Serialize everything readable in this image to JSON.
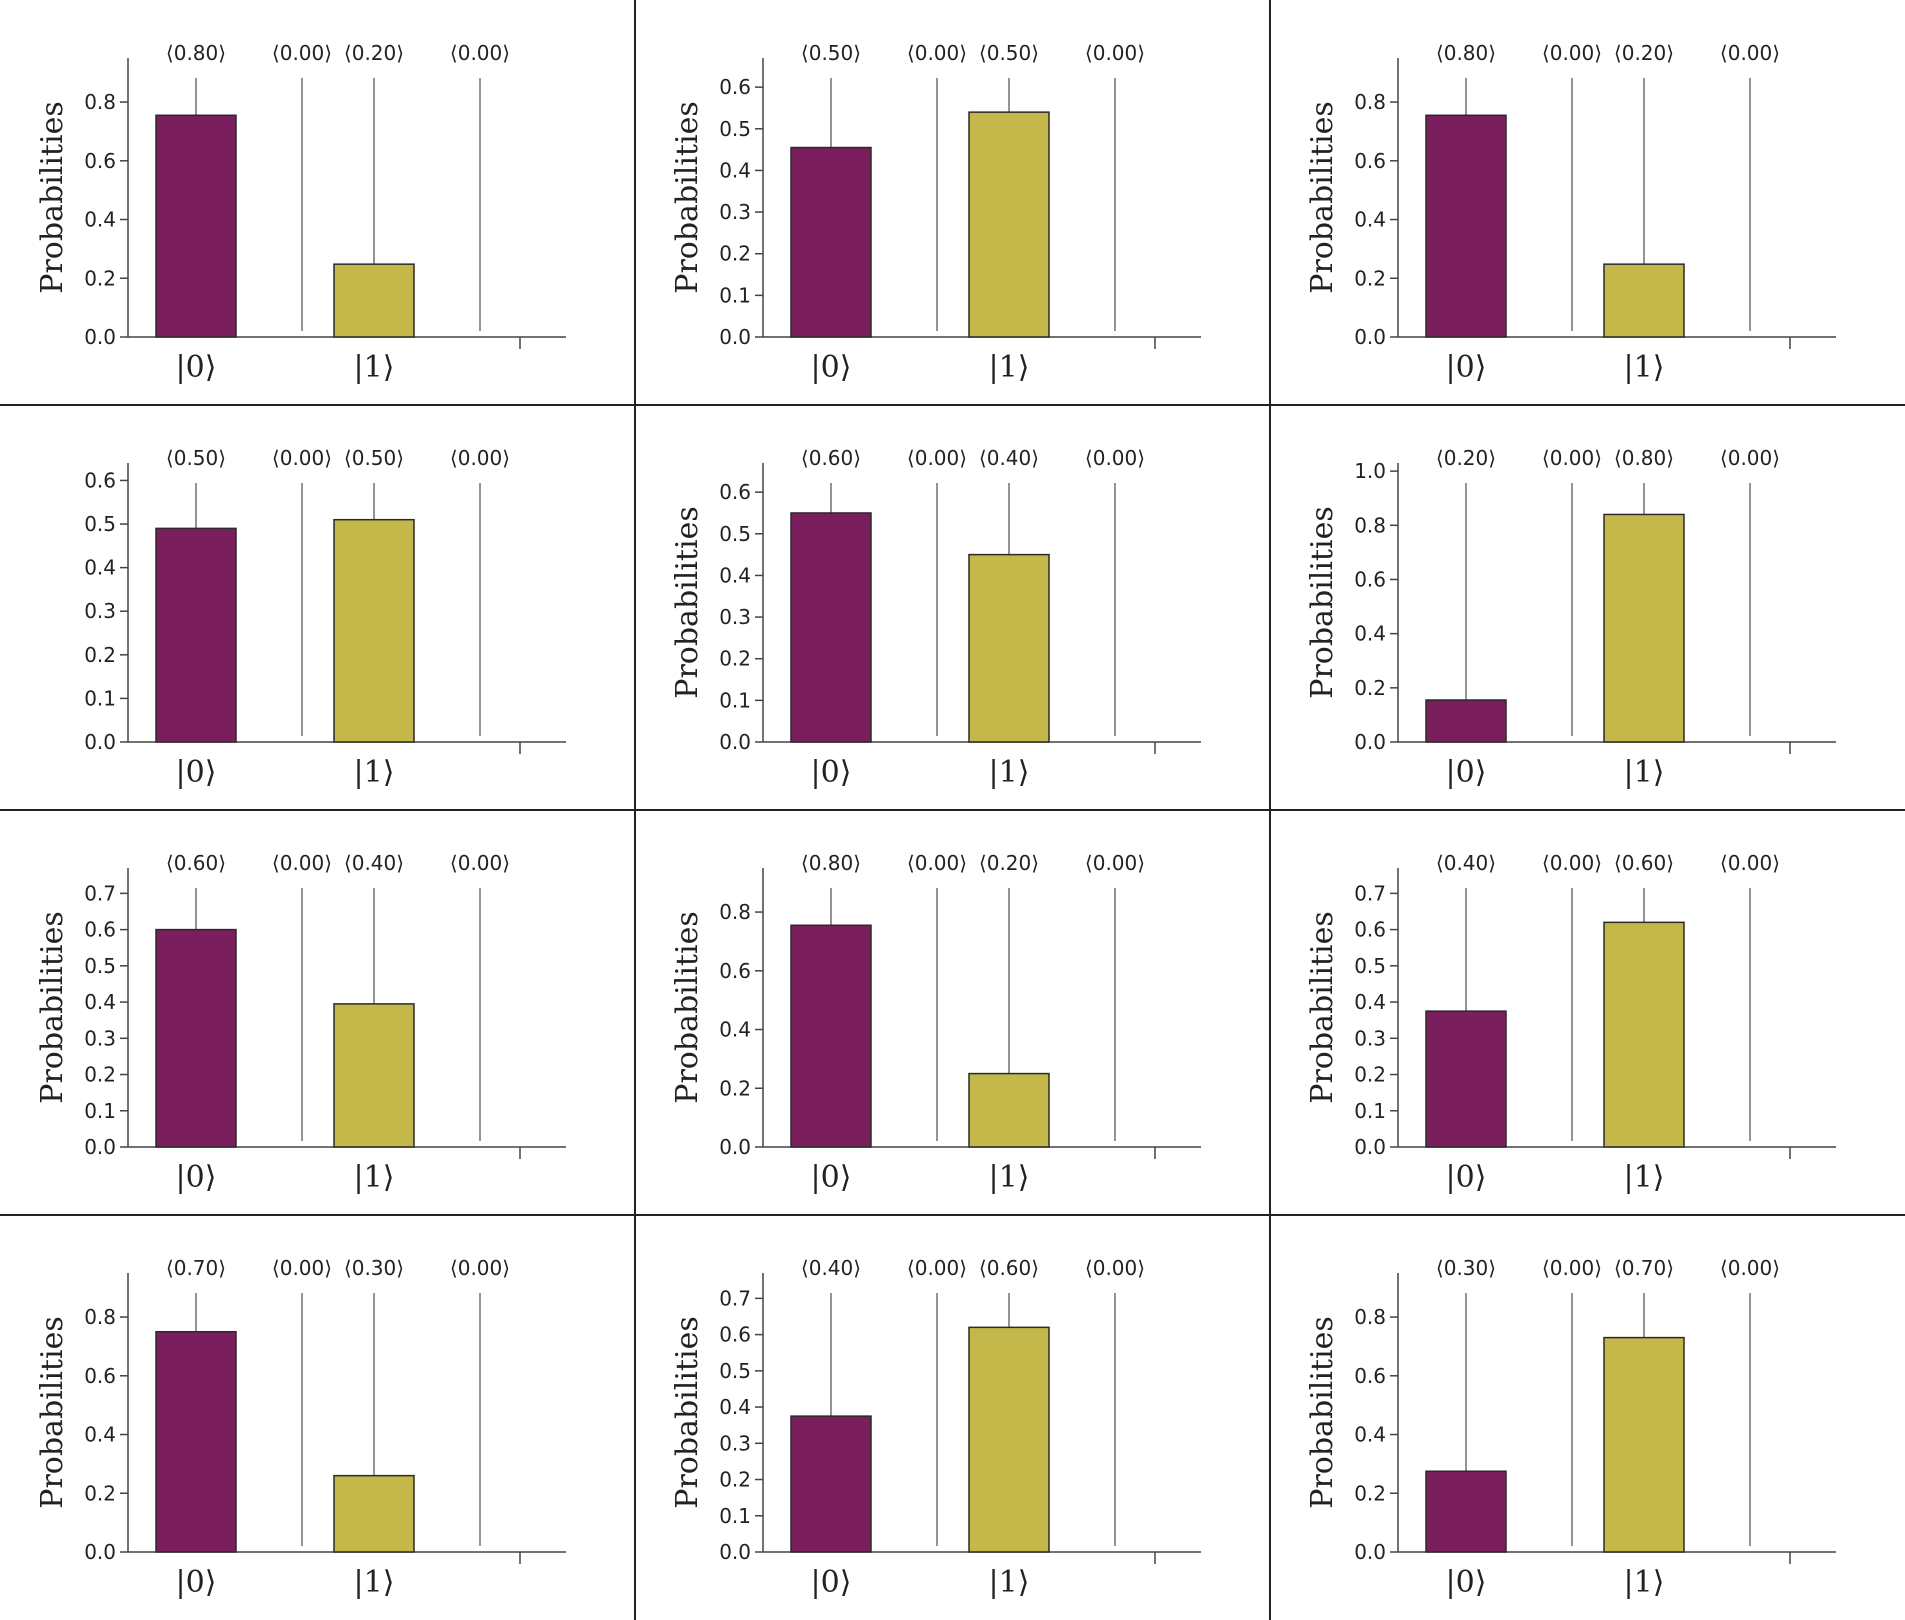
{
  "figure": {
    "rows": 4,
    "cols": 3,
    "colors": {
      "bar0": "#7a1e5e",
      "bar1": "#c4b84a",
      "bar_edge": "#2a2a2a",
      "stem": "#666666",
      "axis": "#444444",
      "divider": "#222222"
    }
  },
  "chart_data": [
    {
      "type": "bar",
      "ylabel": "Probabilities",
      "categories": [
        "|0⟩",
        "|1⟩"
      ],
      "values": [
        0.755,
        0.248
      ],
      "amplitudes": [
        "⟨0.80⟩",
        "⟨0.00⟩",
        "⟨0.20⟩",
        "⟨0.00⟩"
      ],
      "ylim": [
        0,
        0.95
      ],
      "yticks": [
        0.0,
        0.2,
        0.4,
        0.6,
        0.8
      ],
      "ytick_labels": [
        "0.0",
        "0.2",
        "0.4",
        "0.6",
        "0.8"
      ],
      "show_ylabel": true
    },
    {
      "type": "bar",
      "ylabel": "Probabilities",
      "categories": [
        "|0⟩",
        "|1⟩"
      ],
      "values": [
        0.455,
        0.54
      ],
      "amplitudes": [
        "⟨0.50⟩",
        "⟨0.00⟩",
        "⟨0.50⟩",
        "⟨0.00⟩"
      ],
      "ylim": [
        0,
        0.67
      ],
      "yticks": [
        0.0,
        0.1,
        0.2,
        0.3,
        0.4,
        0.5,
        0.6
      ],
      "ytick_labels": [
        "0.0",
        "0.1",
        "0.2",
        "0.3",
        "0.4",
        "0.5",
        "0.6"
      ],
      "show_ylabel": true
    },
    {
      "type": "bar",
      "ylabel": "Probabilities",
      "categories": [
        "|0⟩",
        "|1⟩"
      ],
      "values": [
        0.755,
        0.248
      ],
      "amplitudes": [
        "⟨0.80⟩",
        "⟨0.00⟩",
        "⟨0.20⟩",
        "⟨0.00⟩"
      ],
      "ylim": [
        0,
        0.95
      ],
      "yticks": [
        0.0,
        0.2,
        0.4,
        0.6,
        0.8
      ],
      "ytick_labels": [
        "0.0",
        "0.2",
        "0.4",
        "0.6",
        "0.8"
      ],
      "show_ylabel": true
    },
    {
      "type": "bar",
      "ylabel": "",
      "categories": [
        "|0⟩",
        "|1⟩"
      ],
      "values": [
        0.49,
        0.51
      ],
      "amplitudes": [
        "⟨0.50⟩",
        "⟨0.00⟩",
        "⟨0.50⟩",
        "⟨0.00⟩"
      ],
      "ylim": [
        0,
        0.64
      ],
      "yticks": [
        0.0,
        0.1,
        0.2,
        0.3,
        0.4,
        0.5,
        0.6
      ],
      "ytick_labels": [
        "0.0",
        "0.1",
        "0.2",
        "0.3",
        "0.4",
        "0.5",
        "0.6"
      ],
      "show_ylabel": false
    },
    {
      "type": "bar",
      "ylabel": "Probabilities",
      "categories": [
        "|0⟩",
        "|1⟩"
      ],
      "values": [
        0.55,
        0.45
      ],
      "amplitudes": [
        "⟨0.60⟩",
        "⟨0.00⟩",
        "⟨0.40⟩",
        "⟨0.00⟩"
      ],
      "ylim": [
        0,
        0.67
      ],
      "yticks": [
        0.0,
        0.1,
        0.2,
        0.3,
        0.4,
        0.5,
        0.6
      ],
      "ytick_labels": [
        "0.0",
        "0.1",
        "0.2",
        "0.3",
        "0.4",
        "0.5",
        "0.6"
      ],
      "show_ylabel": true
    },
    {
      "type": "bar",
      "ylabel": "Probabilities",
      "categories": [
        "|0⟩",
        "|1⟩"
      ],
      "values": [
        0.155,
        0.84
      ],
      "amplitudes": [
        "⟨0.20⟩",
        "⟨0.00⟩",
        "⟨0.80⟩",
        "⟨0.00⟩"
      ],
      "ylim": [
        0,
        1.03
      ],
      "yticks": [
        0.0,
        0.2,
        0.4,
        0.6,
        0.8,
        1.0
      ],
      "ytick_labels": [
        "0.0",
        "0.2",
        "0.4",
        "0.6",
        "0.8",
        "1.0"
      ],
      "show_ylabel": true
    },
    {
      "type": "bar",
      "ylabel": "Probabilities",
      "categories": [
        "|0⟩",
        "|1⟩"
      ],
      "values": [
        0.6,
        0.395
      ],
      "amplitudes": [
        "⟨0.60⟩",
        "⟨0.00⟩",
        "⟨0.40⟩",
        "⟨0.00⟩"
      ],
      "ylim": [
        0,
        0.77
      ],
      "yticks": [
        0.0,
        0.1,
        0.2,
        0.3,
        0.4,
        0.5,
        0.6,
        0.7
      ],
      "ytick_labels": [
        "0.0",
        "0.1",
        "0.2",
        "0.3",
        "0.4",
        "0.5",
        "0.6",
        "0.7"
      ],
      "show_ylabel": true
    },
    {
      "type": "bar",
      "ylabel": "Probabilities",
      "categories": [
        "|0⟩",
        "|1⟩"
      ],
      "values": [
        0.755,
        0.25
      ],
      "amplitudes": [
        "⟨0.80⟩",
        "⟨0.00⟩",
        "⟨0.20⟩",
        "⟨0.00⟩"
      ],
      "ylim": [
        0,
        0.95
      ],
      "yticks": [
        0.0,
        0.2,
        0.4,
        0.6,
        0.8
      ],
      "ytick_labels": [
        "0.0",
        "0.2",
        "0.4",
        "0.6",
        "0.8"
      ],
      "show_ylabel": true
    },
    {
      "type": "bar",
      "ylabel": "Probabilities",
      "categories": [
        "|0⟩",
        "|1⟩"
      ],
      "values": [
        0.375,
        0.62
      ],
      "amplitudes": [
        "⟨0.40⟩",
        "⟨0.00⟩",
        "⟨0.60⟩",
        "⟨0.00⟩"
      ],
      "ylim": [
        0,
        0.77
      ],
      "yticks": [
        0.0,
        0.1,
        0.2,
        0.3,
        0.4,
        0.5,
        0.6,
        0.7
      ],
      "ytick_labels": [
        "0.0",
        "0.1",
        "0.2",
        "0.3",
        "0.4",
        "0.5",
        "0.6",
        "0.7"
      ],
      "show_ylabel": true
    },
    {
      "type": "bar",
      "ylabel": "Probabilities",
      "categories": [
        "|0⟩",
        "|1⟩"
      ],
      "values": [
        0.75,
        0.26
      ],
      "amplitudes": [
        "⟨0.70⟩",
        "⟨0.00⟩",
        "⟨0.30⟩",
        "⟨0.00⟩"
      ],
      "ylim": [
        0,
        0.95
      ],
      "yticks": [
        0.0,
        0.2,
        0.4,
        0.6,
        0.8
      ],
      "ytick_labels": [
        "0.0",
        "0.2",
        "0.4",
        "0.6",
        "0.8"
      ],
      "show_ylabel": true
    },
    {
      "type": "bar",
      "ylabel": "Probabilities",
      "categories": [
        "|0⟩",
        "|1⟩"
      ],
      "values": [
        0.375,
        0.62
      ],
      "amplitudes": [
        "⟨0.40⟩",
        "⟨0.00⟩",
        "⟨0.60⟩",
        "⟨0.00⟩"
      ],
      "ylim": [
        0,
        0.77
      ],
      "yticks": [
        0.0,
        0.1,
        0.2,
        0.3,
        0.4,
        0.5,
        0.6,
        0.7
      ],
      "ytick_labels": [
        "0.0",
        "0.1",
        "0.2",
        "0.3",
        "0.4",
        "0.5",
        "0.6",
        "0.7"
      ],
      "show_ylabel": true
    },
    {
      "type": "bar",
      "ylabel": "Probabilities",
      "categories": [
        "|0⟩",
        "|1⟩"
      ],
      "values": [
        0.275,
        0.73
      ],
      "amplitudes": [
        "⟨0.30⟩",
        "⟨0.00⟩",
        "⟨0.70⟩",
        "⟨0.00⟩"
      ],
      "ylim": [
        0,
        0.95
      ],
      "yticks": [
        0.0,
        0.2,
        0.4,
        0.6,
        0.8
      ],
      "ytick_labels": [
        "0.0",
        "0.2",
        "0.4",
        "0.6",
        "0.8"
      ],
      "show_ylabel": true
    }
  ]
}
